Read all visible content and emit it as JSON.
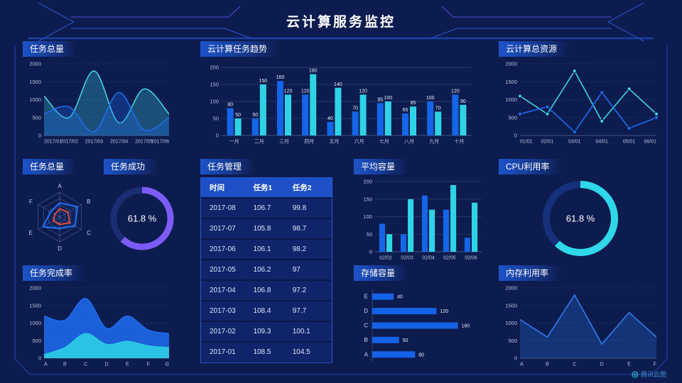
{
  "title": "云计算服务监控",
  "watermark": {
    "label": "腾讯云图"
  },
  "colors": {
    "background": "#0d1c4f",
    "panel_header": "#1e56d0",
    "blue": "#1565e8",
    "cyan": "#2ed3e6",
    "purple": "#7d5bf6",
    "red": "#f4503a",
    "frame_blue": "#2e55d4",
    "frame_purple": "#5b4be0"
  },
  "chart_data": [
    {
      "id": "task_total",
      "type": "area",
      "title": "任务总量",
      "grid": "dash",
      "smooth": true,
      "x": [
        "2017/01",
        "2017/02",
        "2017/03",
        "2017/04",
        "2017/05",
        "2017/06"
      ],
      "ylim": [
        0,
        2000
      ],
      "yticks": [
        0,
        500,
        1000,
        1500,
        2000
      ],
      "series": [
        {
          "name": "series-cyan",
          "color": "#3fd4e0",
          "fill": 0.28,
          "values": [
            1100,
            500,
            1800,
            350,
            1300,
            600
          ]
        },
        {
          "name": "series-blue",
          "color": "#1e6cf0",
          "fill": 0.28,
          "values": [
            600,
            800,
            100,
            1200,
            150,
            500
          ]
        }
      ]
    },
    {
      "id": "task_trend",
      "type": "bar",
      "title": "云计算任务趋势",
      "value_labels": true,
      "categories": [
        "一月",
        "二月",
        "三月",
        "四月",
        "五月",
        "六月",
        "七月",
        "八月",
        "九月",
        "十月"
      ],
      "ylim": [
        0,
        200
      ],
      "yticks": [
        0,
        50,
        100,
        150,
        200
      ],
      "series": [
        {
          "name": "任务1",
          "color": "#1565e8",
          "values": [
            80,
            50,
            160,
            120,
            40,
            70,
            95,
            65,
            100,
            120
          ]
        },
        {
          "name": "任务2",
          "color": "#2ed3e6",
          "values": [
            50,
            150,
            120,
            180,
            140,
            120,
            100,
            85,
            70,
            90
          ]
        }
      ]
    },
    {
      "id": "cloud_resources",
      "type": "line",
      "title": "云计算总资源",
      "grid": "dash",
      "markers": true,
      "x": [
        "01/01",
        "02/01",
        "03/01",
        "04/01",
        "05/01",
        "06/01"
      ],
      "ylim": [
        0,
        2000
      ],
      "yticks": [
        0,
        500,
        1000,
        1500,
        2000
      ],
      "series": [
        {
          "name": "series-cyan",
          "color": "#3fd4e0",
          "values": [
            1100,
            600,
            1800,
            400,
            1300,
            600
          ]
        },
        {
          "name": "series-blue",
          "color": "#1e6cf0",
          "values": [
            600,
            800,
            100,
            1200,
            200,
            500
          ]
        }
      ]
    },
    {
      "id": "task_radar",
      "type": "radar",
      "title": "任务总量",
      "axes": [
        "A",
        "B",
        "C",
        "D",
        "E",
        "F"
      ],
      "max": 100,
      "series": [
        {
          "name": "blue",
          "color": "#1e6cf0",
          "values": [
            57,
            83,
            71,
            46,
            78,
            42
          ]
        },
        {
          "name": "red",
          "color": "#f4503a",
          "values": [
            33,
            39,
            46,
            30,
            30,
            22
          ]
        }
      ]
    },
    {
      "id": "task_success",
      "type": "donut",
      "title": "任务成功",
      "value": 61.8,
      "label": "61.8 %",
      "color": "#7d5bf6",
      "track": "#1b2d74"
    },
    {
      "id": "task_management",
      "type": "table",
      "title": "任务管理",
      "columns": [
        "时间",
        "任务1",
        "任务2"
      ],
      "rows": [
        [
          "2017-08",
          "106.7",
          "99.8"
        ],
        [
          "2017-07",
          "105.8",
          "98.7"
        ],
        [
          "2017-06",
          "106.1",
          "98.2"
        ],
        [
          "2017-05",
          "106.2",
          "97"
        ],
        [
          "2017-04",
          "106.8",
          "97.2"
        ],
        [
          "2017-03",
          "108.4",
          "97.7"
        ],
        [
          "2017-02",
          "109.3",
          "100.1"
        ],
        [
          "2017-01",
          "108.5",
          "104.5"
        ]
      ]
    },
    {
      "id": "avg_capacity",
      "type": "bar",
      "title": "平均容量",
      "categories": [
        "02/02",
        "02/03",
        "02/04",
        "02/05",
        "02/06"
      ],
      "ylim": [
        0,
        200
      ],
      "yticks": [
        0,
        50,
        100,
        150,
        200
      ],
      "series": [
        {
          "name": "series-blue",
          "color": "#1565e8",
          "values": [
            80,
            50,
            160,
            120,
            40
          ]
        },
        {
          "name": "series-cyan",
          "color": "#2ed3e6",
          "values": [
            50,
            150,
            120,
            190,
            140
          ]
        }
      ]
    },
    {
      "id": "cpu_usage",
      "type": "donut",
      "title": "CPU利用率",
      "value": 61.8,
      "label": "61.8 %",
      "color": "#2fd8e8",
      "track": "#16317c"
    },
    {
      "id": "task_completion",
      "type": "area",
      "title": "任务完成率",
      "grid": "dash",
      "smooth": true,
      "x": [
        "A",
        "B",
        "C",
        "D",
        "E",
        "F",
        "G"
      ],
      "ylim": [
        0,
        2000
      ],
      "yticks": [
        0,
        500,
        1000,
        1500,
        2000
      ],
      "series": [
        {
          "name": "series-blue",
          "color": "#1e6cf0",
          "fill": 0.85,
          "values": [
            1200,
            1080,
            1700,
            850,
            1200,
            800,
            700
          ]
        },
        {
          "name": "series-cyan",
          "color": "#2bc8e4",
          "fill": 0.95,
          "values": [
            100,
            300,
            700,
            390,
            480,
            350,
            300
          ]
        }
      ]
    },
    {
      "id": "storage",
      "type": "hbar",
      "title": "存储容量",
      "categories": [
        "E",
        "D",
        "C",
        "B",
        "A"
      ],
      "values": [
        40,
        120,
        160,
        50,
        80
      ],
      "color": "#1463e8",
      "max": 170
    },
    {
      "id": "memory",
      "type": "line",
      "title": "内存利用率",
      "grid": "dash",
      "x": [
        "A",
        "B",
        "C",
        "D",
        "E",
        "F"
      ],
      "ylim": [
        0,
        2000
      ],
      "yticks": [
        0,
        500,
        1000,
        1500,
        2000
      ],
      "series": [
        {
          "name": "series-blue",
          "color": "#2e7bf0",
          "fill": 0.25,
          "values": [
            1100,
            600,
            1800,
            400,
            1300,
            600
          ]
        }
      ]
    }
  ]
}
